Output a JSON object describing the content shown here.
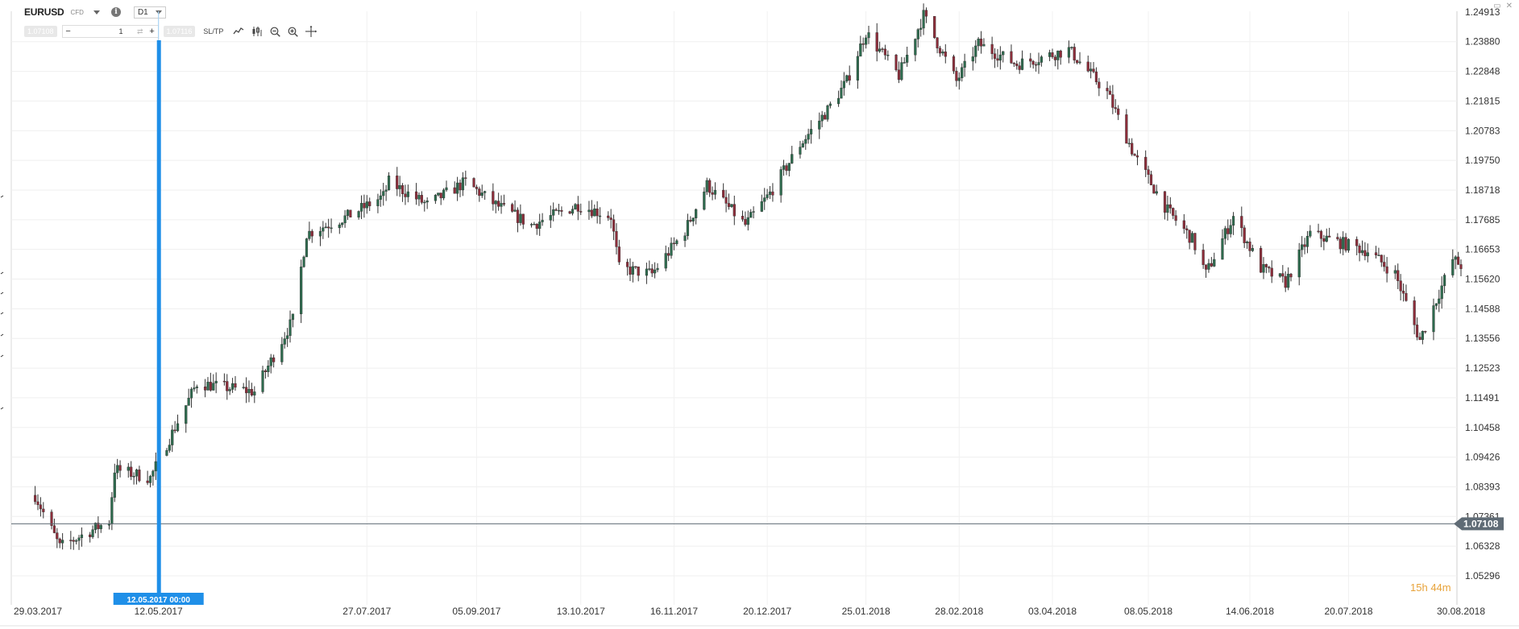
{
  "header": {
    "symbol": "EURUSD",
    "instrument_type": "CFD",
    "timeframe": "D1",
    "sell_price": "1.07108",
    "buy_price": "1.07116",
    "quantity": "1",
    "sltp_label": "SL/TP"
  },
  "icons": [
    "symbol-dropdown-caret",
    "info-icon",
    "timeframe-caret",
    "minus-icon",
    "plus-icon",
    "swap-icon",
    "line-chart-icon",
    "candlestick-icon",
    "zoom-out-icon",
    "zoom-in-icon",
    "crosshair-icon",
    "window-icon",
    "close-icon"
  ],
  "colors": {
    "bull": "#2e6b4e",
    "bear": "#8c2d3a",
    "marker": "#1f8fe8",
    "current_price": "#5f6b75",
    "timer": "#e8a33a"
  },
  "timer": {
    "hours": "15",
    "hours_unit": "h",
    "minutes": "44",
    "minutes_unit": "m"
  },
  "chart_data": {
    "type": "candlestick",
    "x_tick_labels": [
      "29.03.2017",
      "12.05.2017",
      "27.07.2017",
      "05.09.2017",
      "13.10.2017",
      "16.11.2017",
      "20.12.2017",
      "25.01.2018",
      "28.02.2018",
      "03.04.2018",
      "08.05.2018",
      "14.06.2018",
      "20.07.2018",
      "30.08.2018"
    ],
    "y_tick_labels": [
      "1.24913",
      "1.23880",
      "1.22848",
      "1.21815",
      "1.20783",
      "1.19750",
      "1.18718",
      "1.17685",
      "1.16653",
      "1.15620",
      "1.14588",
      "1.13556",
      "1.12523",
      "1.11491",
      "1.10458",
      "1.09426",
      "1.08393",
      "1.07361",
      "1.06328",
      "1.05296"
    ],
    "ylim": [
      1.05296,
      1.25946
    ],
    "current_price": "1.07108",
    "selected_time_label": "12.05.2017 00:00",
    "selected_date": "12.05.2017",
    "grid": true,
    "trend_path": [
      [
        "28.03.2017",
        1.081
      ],
      [
        "06.04.2017",
        1.063
      ],
      [
        "24.04.2017",
        1.072
      ],
      [
        "26.04.2017",
        1.09
      ],
      [
        "09.05.2017",
        1.087
      ],
      [
        "12.05.2017",
        1.093
      ],
      [
        "26.05.2017",
        1.12
      ],
      [
        "16.06.2017",
        1.117
      ],
      [
        "30.06.2017",
        1.142
      ],
      [
        "05.07.2017",
        1.172
      ],
      [
        "20.07.2017",
        1.178
      ],
      [
        "02.08.2017",
        1.185
      ],
      [
        "04.08.2017",
        1.19
      ],
      [
        "18.08.2017",
        1.182
      ],
      [
        "01.09.2017",
        1.19
      ],
      [
        "12.09.2017",
        1.182
      ],
      [
        "25.09.2017",
        1.175
      ],
      [
        "12.10.2017",
        1.182
      ],
      [
        "24.10.2017",
        1.178
      ],
      [
        "27.10.2017",
        1.16
      ],
      [
        "08.11.2017",
        1.158
      ],
      [
        "20.11.2017",
        1.173
      ],
      [
        "28.11.2017",
        1.189
      ],
      [
        "12.12.2017",
        1.175
      ],
      [
        "21.12.2017",
        1.186
      ],
      [
        "01.01.2018",
        1.203
      ],
      [
        "11.01.2018",
        1.215
      ],
      [
        "18.01.2018",
        1.225
      ],
      [
        "25.01.2018",
        1.242
      ],
      [
        "06.02.2018",
        1.227
      ],
      [
        "15.02.2018",
        1.248
      ],
      [
        "27.02.2018",
        1.225
      ],
      [
        "07.03.2018",
        1.238
      ],
      [
        "21.03.2018",
        1.231
      ],
      [
        "29.03.2018",
        1.233
      ],
      [
        "09.04.2018",
        1.236
      ],
      [
        "23.04.2018",
        1.221
      ],
      [
        "03.05.2018",
        1.199
      ],
      [
        "15.05.2018",
        1.18
      ],
      [
        "24.05.2018",
        1.17
      ],
      [
        "29.05.2018",
        1.158
      ],
      [
        "08.06.2018",
        1.178
      ],
      [
        "18.06.2018",
        1.16
      ],
      [
        "27.06.2018",
        1.155
      ],
      [
        "06.07.2018",
        1.172
      ],
      [
        "27.07.2018",
        1.166
      ],
      [
        "06.08.2018",
        1.158
      ],
      [
        "15.08.2018",
        1.135
      ],
      [
        "27.08.2018",
        1.163
      ],
      [
        "30.08.2018",
        1.161
      ]
    ]
  }
}
